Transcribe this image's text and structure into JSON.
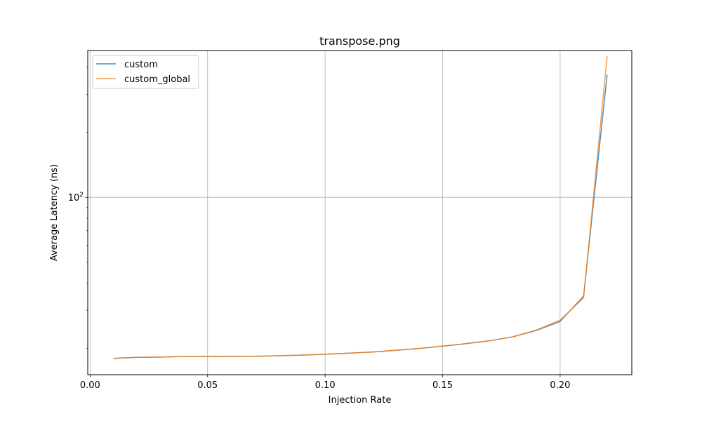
{
  "chart_data": {
    "type": "line",
    "title": "transpose.png",
    "xlabel": "Injection Rate",
    "ylabel": "Average Latency (ns)",
    "x_scale": "linear",
    "y_scale": "log",
    "xlim": [
      -0.001,
      0.2305
    ],
    "ylim": [
      15.08,
      478.6
    ],
    "x_ticks": [
      0.0,
      0.05,
      0.1,
      0.15,
      0.2
    ],
    "x_tick_labels": [
      "0.00",
      "0.05",
      "0.10",
      "0.15",
      "0.20"
    ],
    "y_major_ticks": [
      100
    ],
    "y_tick_labels": [
      "10",
      "2"
    ],
    "y_minor_ticks": [
      20,
      30,
      40,
      50,
      60,
      70,
      80,
      90,
      200,
      300,
      400
    ],
    "grid": true,
    "legend_position": "upper-left",
    "x": [
      0.01,
      0.02,
      0.03,
      0.04,
      0.05,
      0.06,
      0.07,
      0.08,
      0.09,
      0.1,
      0.11,
      0.12,
      0.13,
      0.14,
      0.15,
      0.16,
      0.17,
      0.18,
      0.19,
      0.2,
      0.21,
      0.22
    ],
    "series": [
      {
        "name": "custom",
        "color": "#1f77b4",
        "values": [
          17.95,
          18.15,
          18.2,
          18.3,
          18.3,
          18.32,
          18.35,
          18.45,
          18.58,
          18.76,
          18.97,
          19.2,
          19.55,
          19.95,
          20.45,
          21.0,
          21.65,
          22.6,
          24.2,
          26.6,
          34.9,
          370
        ]
      },
      {
        "name": "custom_global",
        "color": "#ff7f0e",
        "values": [
          17.95,
          18.15,
          18.2,
          18.3,
          18.3,
          18.32,
          18.35,
          18.45,
          18.58,
          18.76,
          18.97,
          19.2,
          19.55,
          19.95,
          20.45,
          21.0,
          21.65,
          22.6,
          24.3,
          27.0,
          34.2,
          450
        ]
      }
    ]
  }
}
